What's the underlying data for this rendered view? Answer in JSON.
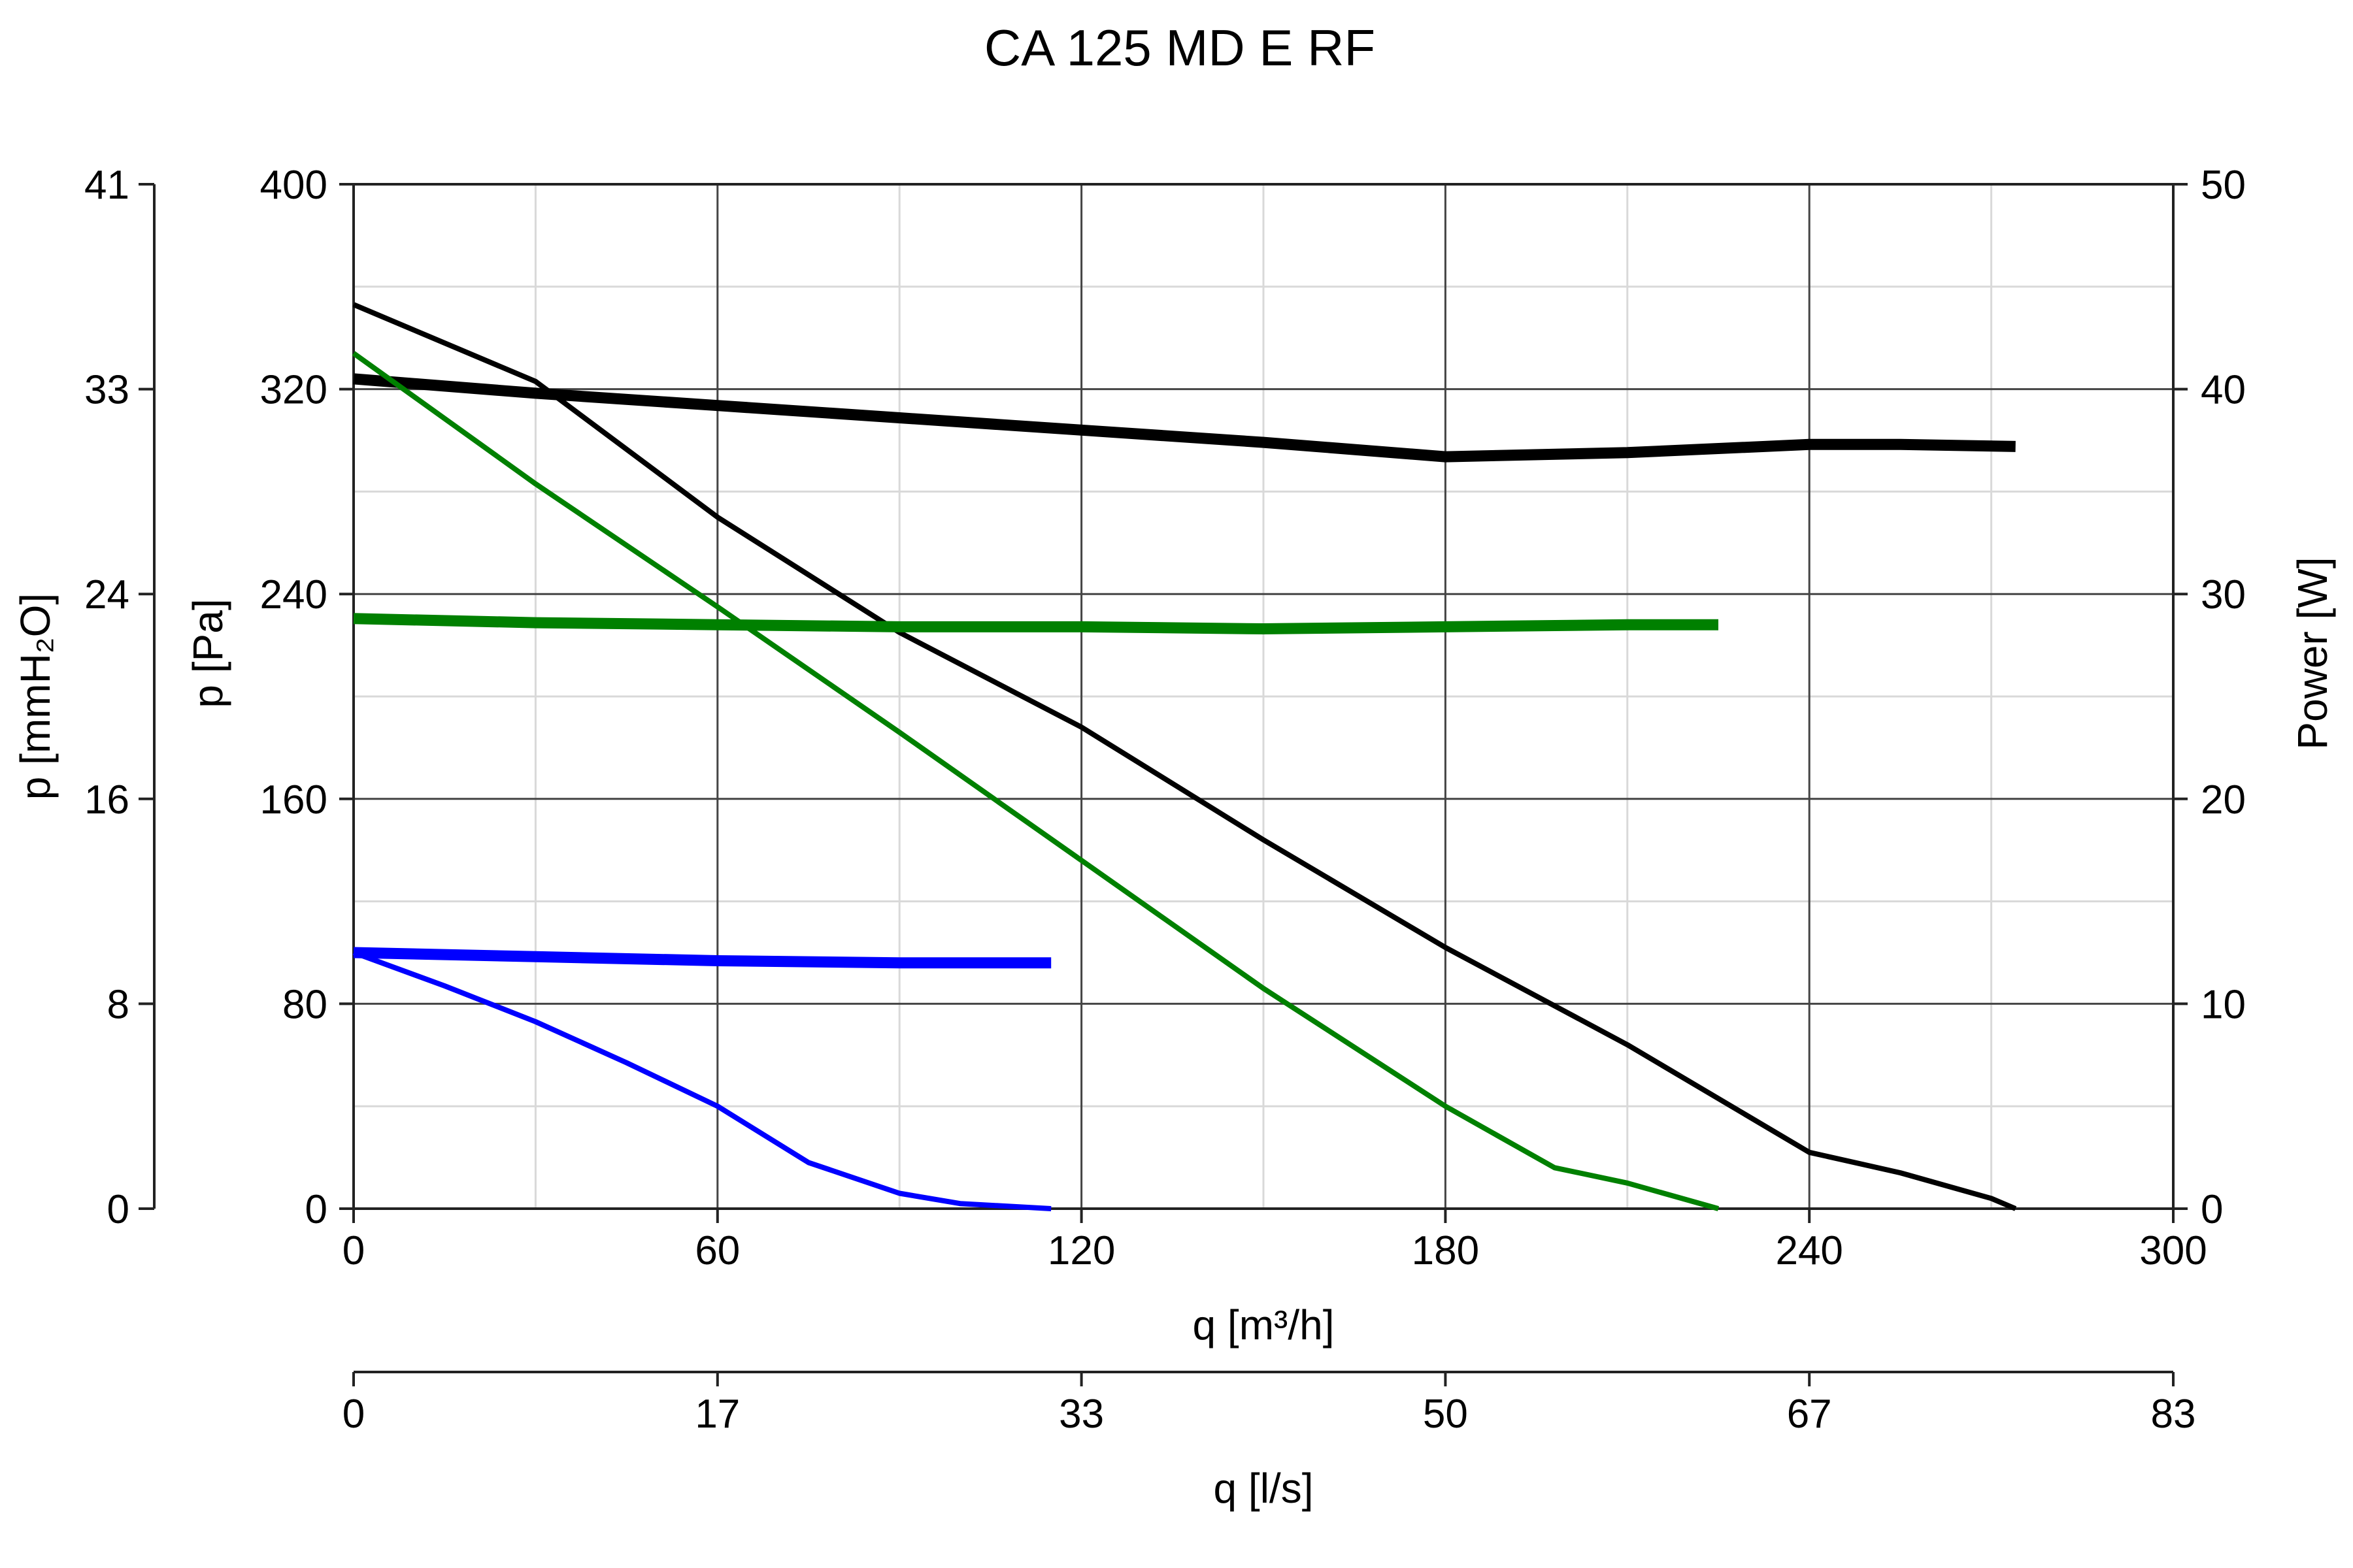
{
  "chart_data": {
    "type": "line",
    "title": "CA 125 MD E RF",
    "x_axis": {
      "label": "q [m³/h]",
      "range": [
        0,
        300
      ],
      "ticks": [
        "0",
        "60",
        "120",
        "180",
        "240",
        "300"
      ]
    },
    "x2_axis": {
      "label": "q [l/s]",
      "ticks": [
        "0",
        "17",
        "33",
        "50",
        "67",
        "83"
      ]
    },
    "y_axis": {
      "label": "p [Pa]",
      "range": [
        0,
        400
      ],
      "ticks": [
        "0",
        "80",
        "160",
        "240",
        "320",
        "400"
      ]
    },
    "y_outer_axis": {
      "label": "p [mmH₂O]",
      "ticks": [
        "0",
        "8",
        "16",
        "24",
        "33",
        "41"
      ]
    },
    "y_right_axis": {
      "label": "Power [W]",
      "range": [
        0,
        50
      ],
      "ticks": [
        "0",
        "10",
        "20",
        "30",
        "40",
        "50"
      ]
    },
    "grid": true,
    "series": [
      {
        "kind": "pressure",
        "axis": "left",
        "color": "#000000",
        "width": "thin",
        "points": [
          [
            0,
            353
          ],
          [
            30,
            323
          ],
          [
            60,
            270
          ],
          [
            90,
            225
          ],
          [
            120,
            188
          ],
          [
            150,
            144
          ],
          [
            180,
            102
          ],
          [
            210,
            64
          ],
          [
            240,
            22
          ],
          [
            255,
            14
          ],
          [
            270,
            4
          ],
          [
            274,
            0
          ]
        ]
      },
      {
        "kind": "power",
        "axis": "right",
        "color": "#000000",
        "width": "thick",
        "points": [
          [
            0,
            40.5
          ],
          [
            30,
            39.8
          ],
          [
            60,
            39.2
          ],
          [
            90,
            38.6
          ],
          [
            120,
            38.0
          ],
          [
            150,
            37.4
          ],
          [
            180,
            36.7
          ],
          [
            210,
            36.9
          ],
          [
            240,
            37.3
          ],
          [
            255,
            37.3
          ],
          [
            274,
            37.2
          ]
        ]
      },
      {
        "kind": "pressure",
        "axis": "left",
        "color": "#008000",
        "width": "thin",
        "points": [
          [
            0,
            334
          ],
          [
            30,
            283
          ],
          [
            60,
            235
          ],
          [
            90,
            186
          ],
          [
            120,
            136
          ],
          [
            150,
            86
          ],
          [
            180,
            40
          ],
          [
            198,
            16
          ],
          [
            210,
            10
          ],
          [
            225,
            0
          ]
        ]
      },
      {
        "kind": "power",
        "axis": "right",
        "color": "#008000",
        "width": "thick",
        "points": [
          [
            0,
            28.8
          ],
          [
            30,
            28.6
          ],
          [
            60,
            28.5
          ],
          [
            90,
            28.4
          ],
          [
            120,
            28.4
          ],
          [
            150,
            28.3
          ],
          [
            180,
            28.4
          ],
          [
            210,
            28.5
          ],
          [
            225,
            28.5
          ]
        ]
      },
      {
        "kind": "pressure",
        "axis": "left",
        "color": "#0000ff",
        "width": "thin",
        "points": [
          [
            0,
            100
          ],
          [
            15,
            87
          ],
          [
            30,
            73
          ],
          [
            45,
            57
          ],
          [
            60,
            40
          ],
          [
            75,
            18
          ],
          [
            90,
            6
          ],
          [
            100,
            2
          ],
          [
            115,
            0
          ]
        ]
      },
      {
        "kind": "power",
        "axis": "right",
        "color": "#0000ff",
        "width": "thick",
        "points": [
          [
            0,
            12.5
          ],
          [
            30,
            12.3
          ],
          [
            60,
            12.1
          ],
          [
            90,
            12.0
          ],
          [
            115,
            12.0
          ]
        ]
      }
    ]
  }
}
